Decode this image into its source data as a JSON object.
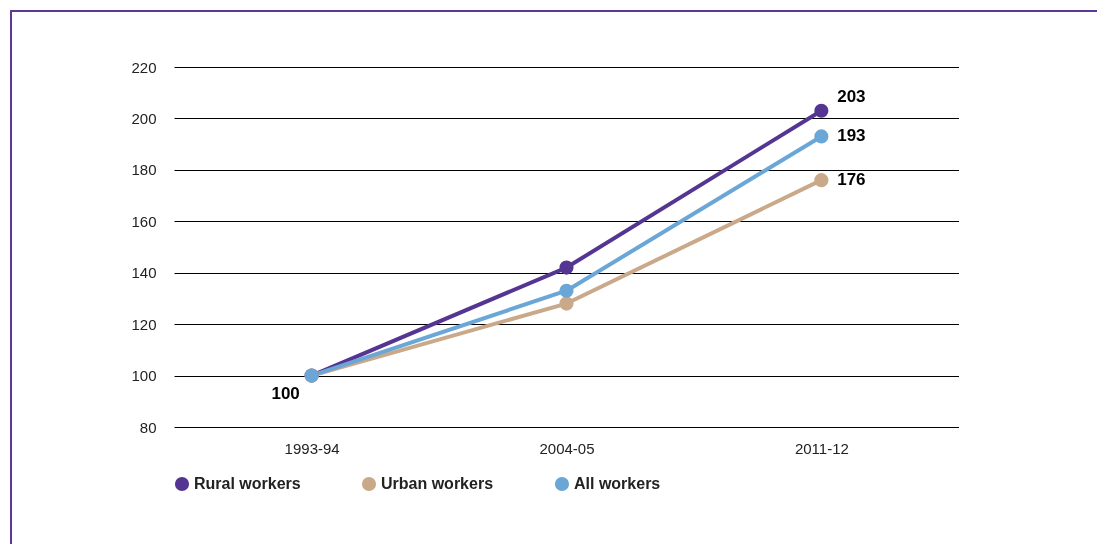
{
  "chart_data": {
    "type": "line",
    "categories": [
      "1993-94",
      "2004-05",
      "2011-12"
    ],
    "series": [
      {
        "name": "Rural workers",
        "color": "#553592",
        "values": [
          100,
          142,
          203
        ],
        "value_labels": [
          null,
          null,
          "203"
        ]
      },
      {
        "name": "Urban workers",
        "color": "#c9a98a",
        "values": [
          100,
          128,
          176
        ],
        "value_labels": [
          "100",
          null,
          "176"
        ]
      },
      {
        "name": "All workers",
        "color": "#6aa6d6",
        "values": [
          100,
          133,
          193
        ],
        "value_labels": [
          null,
          null,
          "193"
        ]
      }
    ],
    "ylim": [
      80,
      220
    ],
    "yticks": [
      80,
      100,
      120,
      140,
      160,
      180,
      200,
      220
    ],
    "grid": "y",
    "legend": "bottom",
    "marker": "circle",
    "line_style": "solid"
  }
}
